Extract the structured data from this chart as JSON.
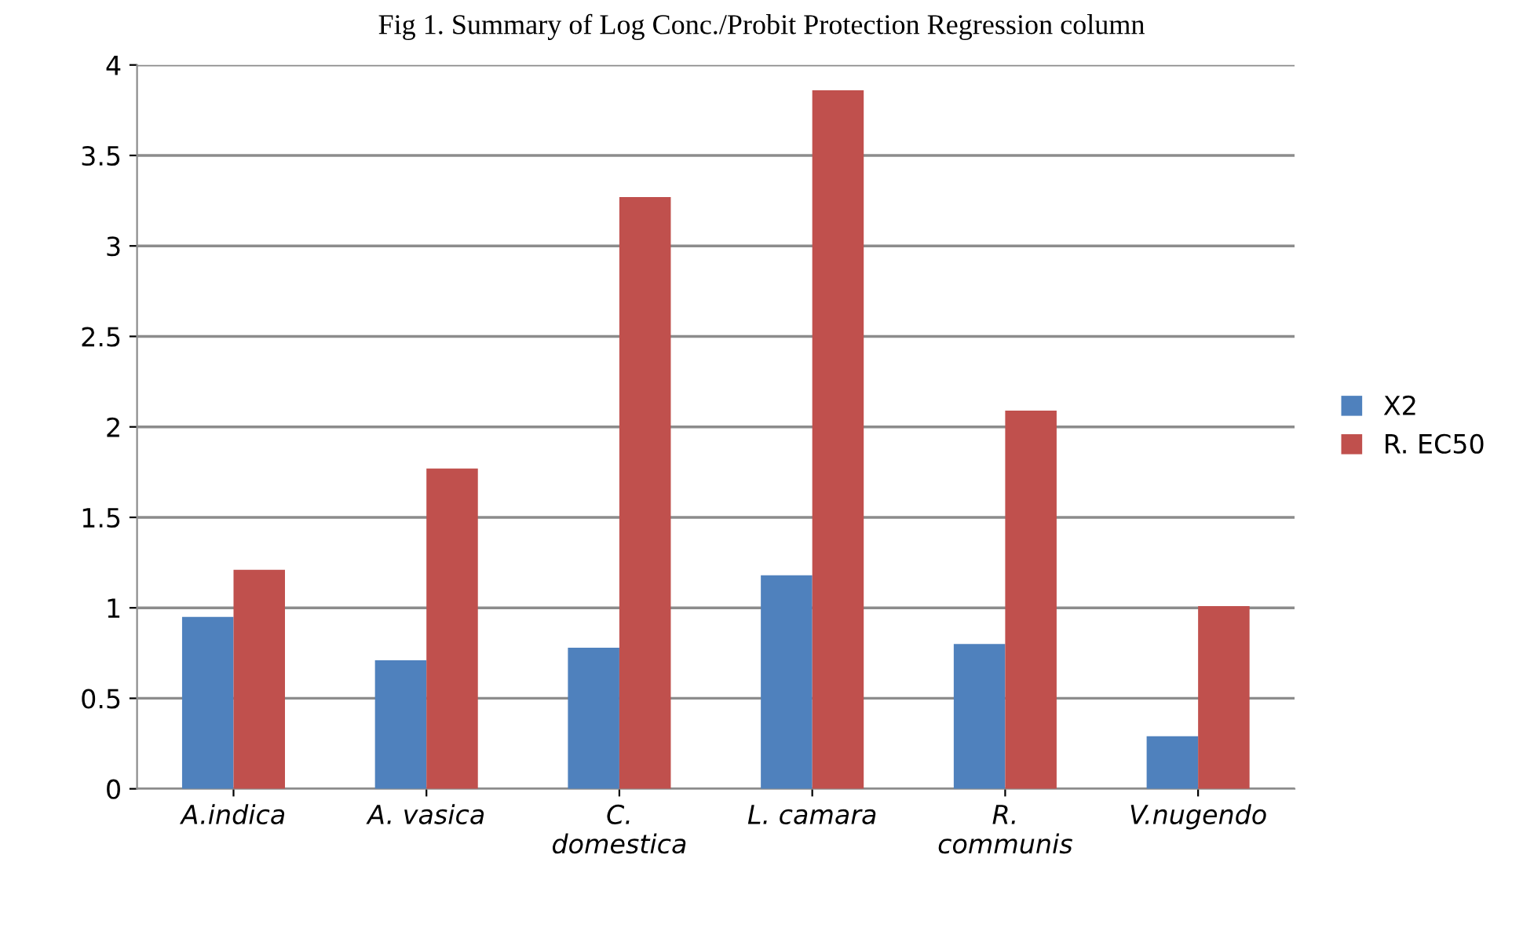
{
  "chart_data": {
    "type": "bar",
    "title": "Fig 1. Summary of Log Conc./Probit Protection Regression column",
    "categories": [
      "A.indica",
      "A. vasica",
      "C.\ndomestica",
      "L. camara",
      "R.\ncommunis",
      "V.nugendo"
    ],
    "series": [
      {
        "name": "X2",
        "color": "#4f81bd",
        "values": [
          0.95,
          0.71,
          0.78,
          1.18,
          0.8,
          0.29
        ]
      },
      {
        "name": "R. EC50",
        "color": "#c0504d",
        "values": [
          1.21,
          1.77,
          3.27,
          3.86,
          2.09,
          1.01
        ]
      }
    ],
    "ylim": [
      0,
      4
    ],
    "yticks": [
      0,
      0.5,
      1,
      1.5,
      2,
      2.5,
      3,
      3.5,
      4
    ],
    "grid": "y",
    "legend": "right"
  }
}
